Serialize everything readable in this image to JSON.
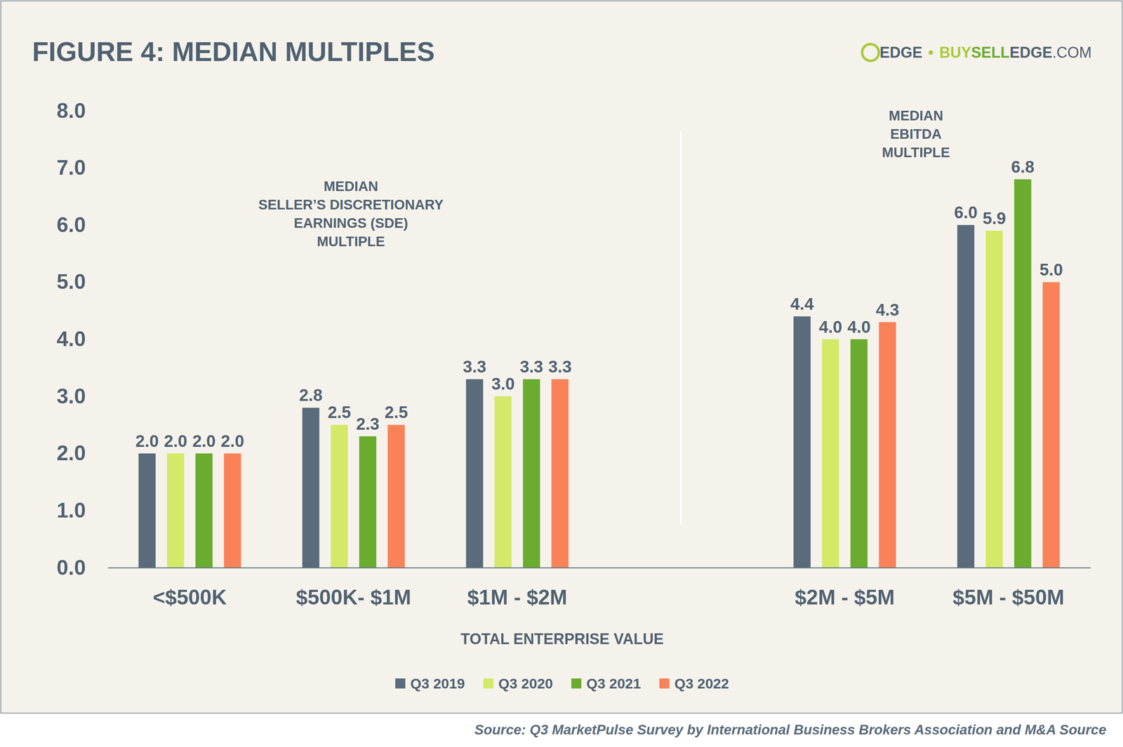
{
  "chart_data": {
    "type": "bar",
    "title": "FIGURE 4: MEDIAN MULTIPLES",
    "logo": [
      "EDGE",
      "•",
      "BUY",
      "SELL",
      "EDGE",
      ".COM"
    ],
    "annotations": [
      [
        "MEDIAN",
        "SELLER’S DISCRETIONARY",
        "EARNINGS (SDE)",
        "MULTIPLE"
      ],
      [
        "MEDIAN",
        "EBITDA",
        "MULTIPLE"
      ]
    ],
    "x_label": "TOTAL ENTERPRISE VALUE",
    "source": "Source: Q3 MarketPulse Survey by International Business Brokers Association and M&A Source",
    "categories": [
      "<$500K",
      "$500K- $1M",
      "$1M - $2M",
      "$2M - $5M",
      "$5M - $50M"
    ],
    "series": [
      {
        "name": "Q3 2019",
        "color": "#5a6b7b",
        "values": [
          2.0,
          2.8,
          3.3,
          4.4,
          6.0
        ],
        "value_labels": [
          "2.0",
          "2.8",
          "3.3",
          "4.4",
          "6.0"
        ]
      },
      {
        "name": "Q3 2020",
        "color": "#d4e967",
        "values": [
          2.0,
          2.5,
          3.0,
          4.0,
          5.9
        ],
        "value_labels": [
          "2.0",
          "2.5",
          "3.0",
          "4.0",
          "5.9"
        ]
      },
      {
        "name": "Q3 2021",
        "color": "#6aac2e",
        "values": [
          2.0,
          2.3,
          3.3,
          4.0,
          6.8
        ],
        "value_labels": [
          "2.0",
          "2.3",
          "3.3",
          "4.0",
          "6.8"
        ]
      },
      {
        "name": "Q3 2022",
        "color": "#f98259",
        "values": [
          2.0,
          2.5,
          3.3,
          4.3,
          5.0
        ],
        "value_labels": [
          "2.0",
          "2.5",
          "3.3",
          "4.3",
          "5.0"
        ]
      }
    ],
    "ylim": [
      0,
      8
    ],
    "yticks": [
      {
        "value": 0,
        "label": "0.0"
      },
      {
        "value": 1,
        "label": "1.0"
      },
      {
        "value": 2,
        "label": "2.0"
      },
      {
        "value": 3,
        "label": "3.0"
      },
      {
        "value": 4,
        "label": "4.0"
      },
      {
        "value": 5,
        "label": "5.0"
      },
      {
        "value": 6,
        "label": "6.0"
      },
      {
        "value": 7,
        "label": "7.0"
      },
      {
        "value": 8,
        "label": "8.0"
      }
    ],
    "grid": false,
    "data_labels": true,
    "legend": "bottom"
  }
}
